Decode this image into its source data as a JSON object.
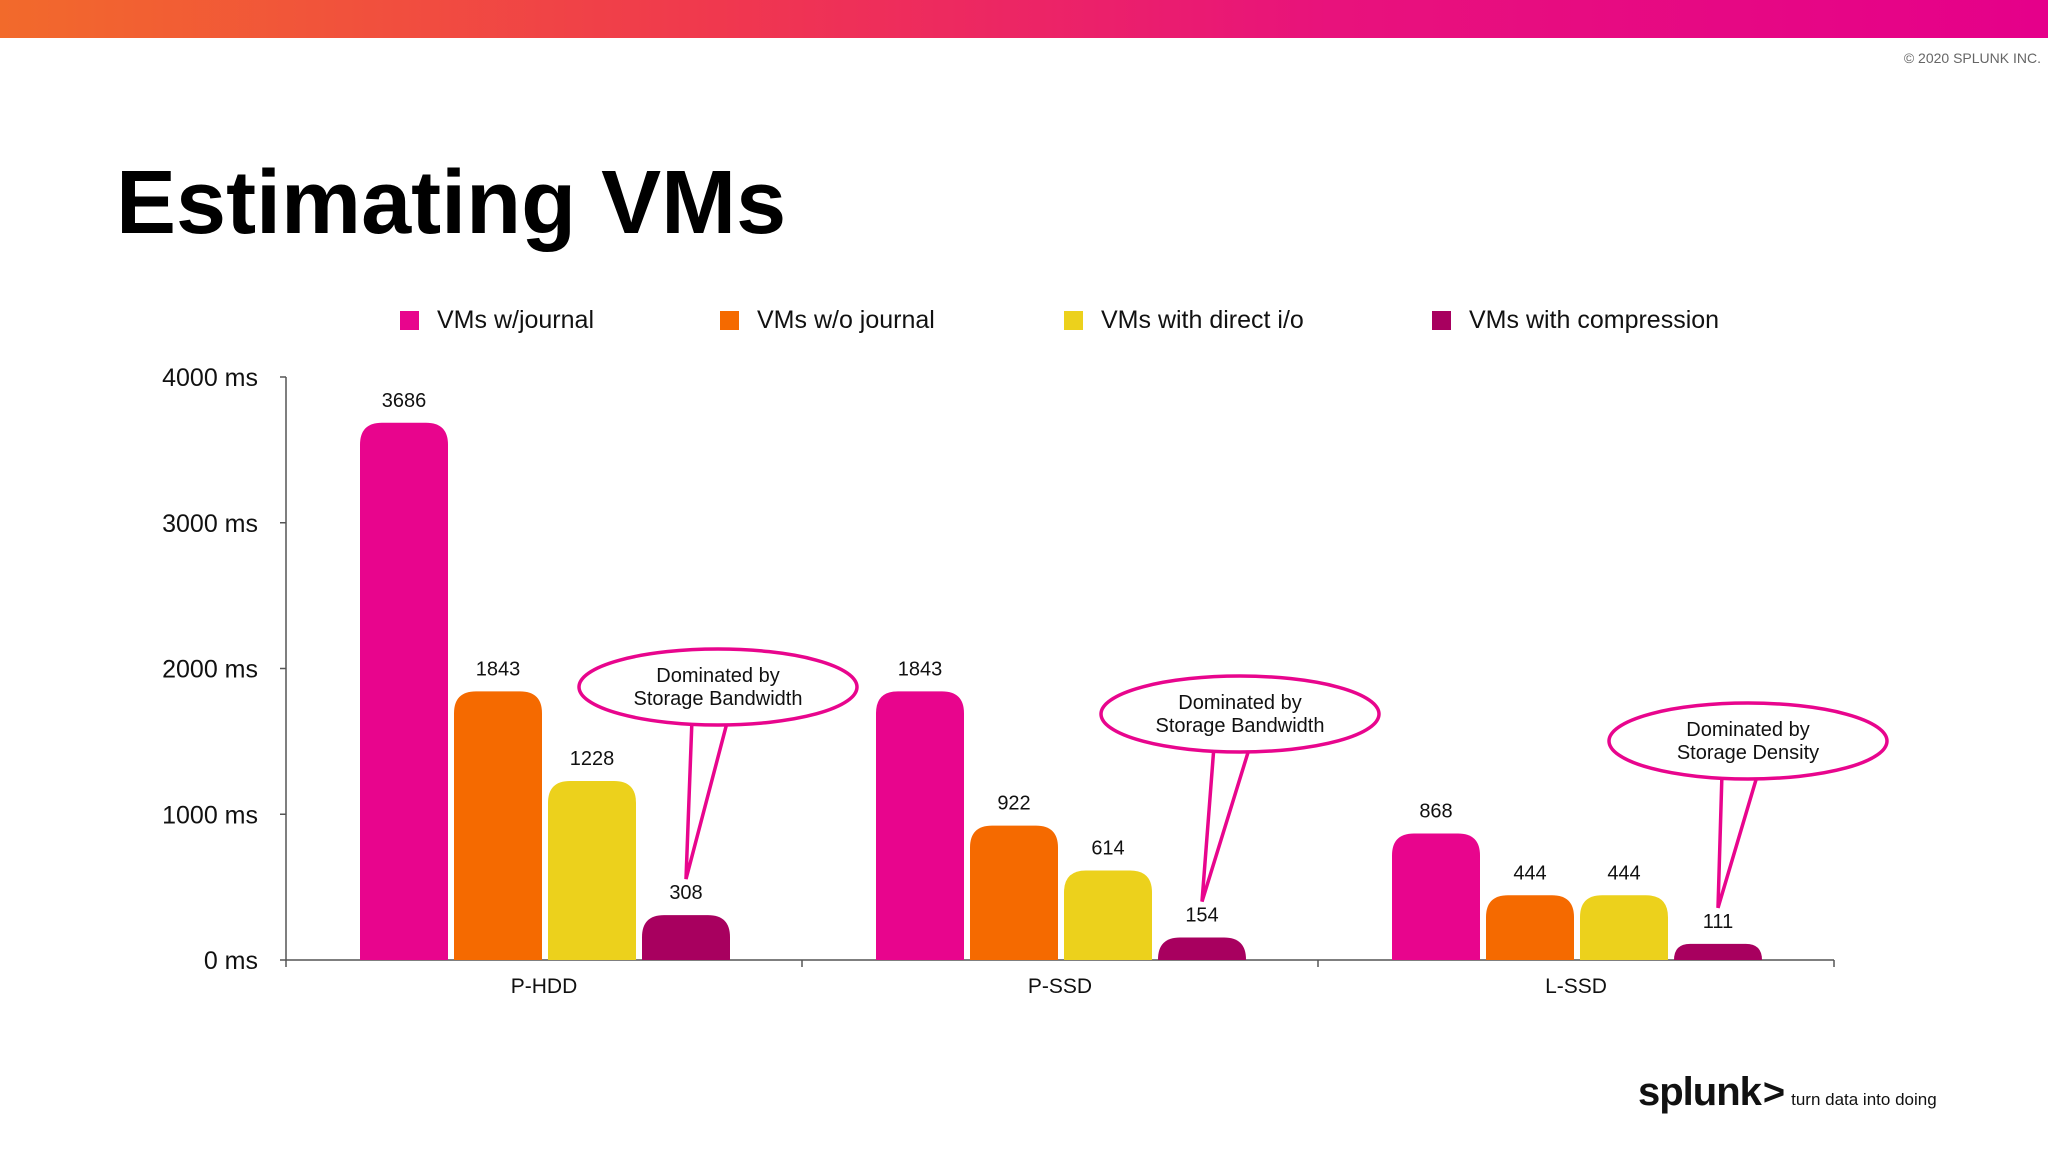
{
  "page": {
    "copyright": "© 2020 SPLUNK INC.",
    "title": "Estimating VMs"
  },
  "logo": {
    "word": "splunk",
    "chevron": ">",
    "tagline": "turn data into doing"
  },
  "chart_data": {
    "type": "bar",
    "title": "",
    "xlabel": "",
    "ylabel": "",
    "categories": [
      "P-HDD",
      "P-SSD",
      "L-SSD"
    ],
    "series": [
      {
        "name": "VMs w/journal",
        "color": "#e8058d",
        "values": [
          3686,
          1843,
          868
        ]
      },
      {
        "name": "VMs w/o journal",
        "color": "#f56a00",
        "values": [
          1843,
          922,
          444
        ]
      },
      {
        "name": "VMs with direct i/o",
        "color": "#ecd11c",
        "values": [
          1228,
          614,
          444
        ]
      },
      {
        "name": "VMs with compression",
        "color": "#a8005f",
        "values": [
          308,
          154,
          111
        ]
      }
    ],
    "ylim": [
      0,
      4000
    ],
    "yticks": [
      0,
      1000,
      2000,
      3000,
      4000
    ],
    "ytick_labels": [
      "0 ms",
      "1000 ms",
      "2000 ms",
      "3000 ms",
      "4000 ms"
    ],
    "legend_position": "top",
    "grid": false,
    "callout_color": "#e8058d",
    "annotations": [
      {
        "text": [
          "Dominated by",
          "Storage Bandwidth"
        ],
        "category": "P-HDD",
        "series": "VMs with compression"
      },
      {
        "text": [
          "Dominated by",
          "Storage Bandwidth"
        ],
        "category": "P-SSD",
        "series": "VMs with compression"
      },
      {
        "text": [
          "Dominated by",
          "Storage Density"
        ],
        "category": "L-SSD",
        "series": "VMs with compression"
      }
    ]
  }
}
